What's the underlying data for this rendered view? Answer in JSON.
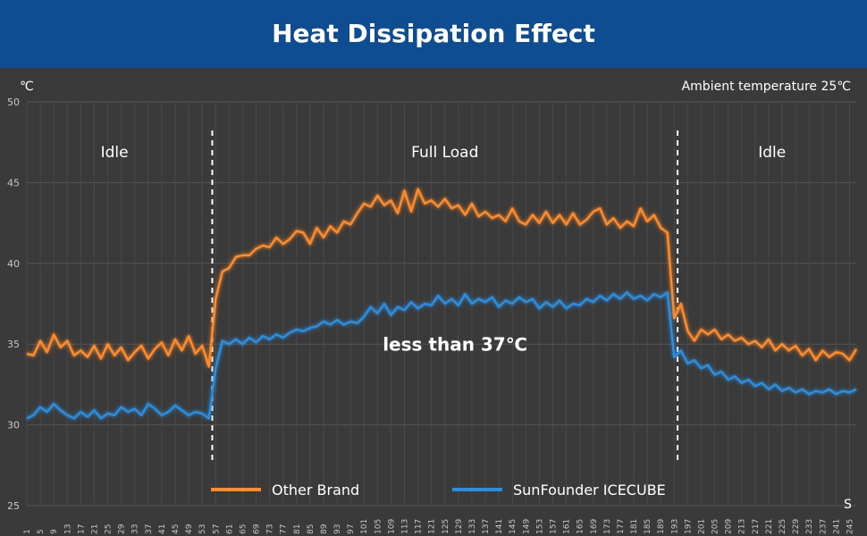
{
  "header": {
    "title": "Heat Dissipation Effect"
  },
  "colors": {
    "banner": "#0e4d92",
    "background": "#3a3a3a",
    "other_brand": "#ff8a2a",
    "sunfounder": "#2c8ee0",
    "grid": "#4a4a4a",
    "text": "#ffffff",
    "tick_text": "#c8c8c8"
  },
  "chart_data": {
    "type": "line",
    "title": "Heat Dissipation Effect",
    "y_unit_label": "℃",
    "x_unit_label": "S",
    "note": "Ambient temperature 25℃",
    "ylim": [
      25,
      50
    ],
    "yticks": [
      25,
      30,
      35,
      40,
      45,
      50
    ],
    "xlim": [
      1,
      247
    ],
    "x_tick_labels": [
      "1",
      "5",
      "9",
      "13",
      "17",
      "21",
      "25",
      "29",
      "33",
      "37",
      "41",
      "45",
      "49",
      "53",
      "57",
      "61",
      "65",
      "69",
      "73",
      "77",
      "81",
      "85",
      "89",
      "93",
      "97",
      "101",
      "105",
      "109",
      "113",
      "117",
      "121",
      "125",
      "129",
      "133",
      "137",
      "141",
      "145",
      "149",
      "153",
      "157",
      "161",
      "165",
      "169",
      "173",
      "177",
      "181",
      "185",
      "189",
      "193",
      "197",
      "201",
      "205",
      "209",
      "213",
      "217",
      "221",
      "225",
      "229",
      "233",
      "237",
      "241",
      "245"
    ],
    "grid": true,
    "phase_boundaries": [
      56,
      194
    ],
    "phase_labels": [
      {
        "text": "Idle",
        "x_center": 27
      },
      {
        "text": "Full Load",
        "x_center": 125
      },
      {
        "text": "Idle",
        "x_center": 222
      }
    ],
    "annotation": {
      "text": "less than 37℃",
      "x": 128,
      "y": 34.6
    },
    "legend_position": "bottom-center",
    "series": [
      {
        "name": "Other Brand",
        "color": "#ff8a2a",
        "points": [
          [
            1,
            34.4
          ],
          [
            3,
            34.3
          ],
          [
            5,
            35.2
          ],
          [
            7,
            34.5
          ],
          [
            9,
            35.6
          ],
          [
            11,
            34.8
          ],
          [
            13,
            35.2
          ],
          [
            15,
            34.3
          ],
          [
            17,
            34.6
          ],
          [
            19,
            34.2
          ],
          [
            21,
            34.9
          ],
          [
            23,
            34.1
          ],
          [
            25,
            35.0
          ],
          [
            27,
            34.3
          ],
          [
            29,
            34.8
          ],
          [
            31,
            34.0
          ],
          [
            33,
            34.5
          ],
          [
            35,
            34.9
          ],
          [
            37,
            34.1
          ],
          [
            39,
            34.7
          ],
          [
            41,
            35.1
          ],
          [
            43,
            34.3
          ],
          [
            45,
            35.3
          ],
          [
            47,
            34.6
          ],
          [
            49,
            35.5
          ],
          [
            51,
            34.4
          ],
          [
            53,
            34.9
          ],
          [
            55,
            33.6
          ],
          [
            57,
            37.8
          ],
          [
            59,
            39.5
          ],
          [
            61,
            39.7
          ],
          [
            63,
            40.4
          ],
          [
            65,
            40.5
          ],
          [
            67,
            40.5
          ],
          [
            69,
            40.9
          ],
          [
            71,
            41.1
          ],
          [
            73,
            41.0
          ],
          [
            75,
            41.6
          ],
          [
            77,
            41.2
          ],
          [
            79,
            41.5
          ],
          [
            81,
            42.0
          ],
          [
            83,
            41.9
          ],
          [
            85,
            41.2
          ],
          [
            87,
            42.2
          ],
          [
            89,
            41.6
          ],
          [
            91,
            42.3
          ],
          [
            93,
            41.9
          ],
          [
            95,
            42.6
          ],
          [
            97,
            42.4
          ],
          [
            99,
            43.1
          ],
          [
            101,
            43.7
          ],
          [
            103,
            43.5
          ],
          [
            105,
            44.2
          ],
          [
            107,
            43.6
          ],
          [
            109,
            43.9
          ],
          [
            111,
            43.1
          ],
          [
            113,
            44.5
          ],
          [
            115,
            43.2
          ],
          [
            117,
            44.6
          ],
          [
            119,
            43.7
          ],
          [
            121,
            43.9
          ],
          [
            123,
            43.5
          ],
          [
            125,
            44.0
          ],
          [
            127,
            43.4
          ],
          [
            129,
            43.6
          ],
          [
            131,
            43.0
          ],
          [
            133,
            43.7
          ],
          [
            135,
            42.9
          ],
          [
            137,
            43.2
          ],
          [
            139,
            42.8
          ],
          [
            141,
            43.0
          ],
          [
            143,
            42.6
          ],
          [
            145,
            43.4
          ],
          [
            147,
            42.6
          ],
          [
            149,
            42.4
          ],
          [
            151,
            43.0
          ],
          [
            153,
            42.5
          ],
          [
            155,
            43.2
          ],
          [
            157,
            42.5
          ],
          [
            159,
            43.0
          ],
          [
            161,
            42.4
          ],
          [
            163,
            43.1
          ],
          [
            165,
            42.4
          ],
          [
            167,
            42.7
          ],
          [
            169,
            43.2
          ],
          [
            171,
            43.4
          ],
          [
            173,
            42.4
          ],
          [
            175,
            42.8
          ],
          [
            177,
            42.2
          ],
          [
            179,
            42.6
          ],
          [
            181,
            42.3
          ],
          [
            183,
            43.4
          ],
          [
            185,
            42.6
          ],
          [
            187,
            43.0
          ],
          [
            189,
            42.2
          ],
          [
            191,
            41.9
          ],
          [
            193,
            36.6
          ],
          [
            195,
            37.5
          ],
          [
            197,
            35.8
          ],
          [
            199,
            35.2
          ],
          [
            201,
            35.9
          ],
          [
            203,
            35.6
          ],
          [
            205,
            35.9
          ],
          [
            207,
            35.3
          ],
          [
            209,
            35.6
          ],
          [
            211,
            35.2
          ],
          [
            213,
            35.4
          ],
          [
            215,
            35.0
          ],
          [
            217,
            35.2
          ],
          [
            219,
            34.8
          ],
          [
            221,
            35.3
          ],
          [
            223,
            34.6
          ],
          [
            225,
            35.0
          ],
          [
            227,
            34.6
          ],
          [
            229,
            34.9
          ],
          [
            231,
            34.3
          ],
          [
            233,
            34.7
          ],
          [
            235,
            34.0
          ],
          [
            237,
            34.6
          ],
          [
            239,
            34.2
          ],
          [
            241,
            34.5
          ],
          [
            243,
            34.4
          ],
          [
            245,
            34.0
          ],
          [
            247,
            34.7
          ]
        ]
      },
      {
        "name": "SunFounder ICECUBE",
        "color": "#2c8ee0",
        "points": [
          [
            1,
            30.4
          ],
          [
            3,
            30.6
          ],
          [
            5,
            31.1
          ],
          [
            7,
            30.8
          ],
          [
            9,
            31.3
          ],
          [
            11,
            30.9
          ],
          [
            13,
            30.6
          ],
          [
            15,
            30.4
          ],
          [
            17,
            30.8
          ],
          [
            19,
            30.5
          ],
          [
            21,
            30.9
          ],
          [
            23,
            30.4
          ],
          [
            25,
            30.7
          ],
          [
            27,
            30.6
          ],
          [
            29,
            31.1
          ],
          [
            31,
            30.8
          ],
          [
            33,
            31.0
          ],
          [
            35,
            30.6
          ],
          [
            37,
            31.3
          ],
          [
            39,
            31.0
          ],
          [
            41,
            30.6
          ],
          [
            43,
            30.8
          ],
          [
            45,
            31.2
          ],
          [
            47,
            30.9
          ],
          [
            49,
            30.6
          ],
          [
            51,
            30.8
          ],
          [
            53,
            30.7
          ],
          [
            55,
            30.4
          ],
          [
            57,
            33.5
          ],
          [
            59,
            35.2
          ],
          [
            61,
            35.0
          ],
          [
            63,
            35.3
          ],
          [
            65,
            35.0
          ],
          [
            67,
            35.4
          ],
          [
            69,
            35.1
          ],
          [
            71,
            35.5
          ],
          [
            73,
            35.3
          ],
          [
            75,
            35.6
          ],
          [
            77,
            35.4
          ],
          [
            79,
            35.7
          ],
          [
            81,
            35.9
          ],
          [
            83,
            35.8
          ],
          [
            85,
            36.0
          ],
          [
            87,
            36.1
          ],
          [
            89,
            36.4
          ],
          [
            91,
            36.2
          ],
          [
            93,
            36.5
          ],
          [
            95,
            36.2
          ],
          [
            97,
            36.4
          ],
          [
            99,
            36.3
          ],
          [
            101,
            36.7
          ],
          [
            103,
            37.3
          ],
          [
            105,
            36.9
          ],
          [
            107,
            37.5
          ],
          [
            109,
            36.8
          ],
          [
            111,
            37.3
          ],
          [
            113,
            37.1
          ],
          [
            115,
            37.6
          ],
          [
            117,
            37.2
          ],
          [
            119,
            37.5
          ],
          [
            121,
            37.4
          ],
          [
            123,
            38.0
          ],
          [
            125,
            37.5
          ],
          [
            127,
            37.8
          ],
          [
            129,
            37.4
          ],
          [
            131,
            38.1
          ],
          [
            133,
            37.5
          ],
          [
            135,
            37.8
          ],
          [
            137,
            37.6
          ],
          [
            139,
            37.9
          ],
          [
            141,
            37.3
          ],
          [
            143,
            37.7
          ],
          [
            145,
            37.5
          ],
          [
            147,
            37.9
          ],
          [
            149,
            37.6
          ],
          [
            151,
            37.8
          ],
          [
            153,
            37.2
          ],
          [
            155,
            37.6
          ],
          [
            157,
            37.3
          ],
          [
            159,
            37.7
          ],
          [
            161,
            37.2
          ],
          [
            163,
            37.5
          ],
          [
            165,
            37.4
          ],
          [
            167,
            37.8
          ],
          [
            169,
            37.6
          ],
          [
            171,
            38.0
          ],
          [
            173,
            37.7
          ],
          [
            175,
            38.1
          ],
          [
            177,
            37.8
          ],
          [
            179,
            38.2
          ],
          [
            181,
            37.8
          ],
          [
            183,
            38.0
          ],
          [
            185,
            37.7
          ],
          [
            187,
            38.1
          ],
          [
            189,
            37.9
          ],
          [
            191,
            38.2
          ],
          [
            193,
            34.2
          ],
          [
            195,
            34.6
          ],
          [
            197,
            33.8
          ],
          [
            199,
            34.0
          ],
          [
            201,
            33.5
          ],
          [
            203,
            33.7
          ],
          [
            205,
            33.1
          ],
          [
            207,
            33.3
          ],
          [
            209,
            32.8
          ],
          [
            211,
            33.0
          ],
          [
            213,
            32.6
          ],
          [
            215,
            32.8
          ],
          [
            217,
            32.4
          ],
          [
            219,
            32.6
          ],
          [
            221,
            32.2
          ],
          [
            223,
            32.5
          ],
          [
            225,
            32.1
          ],
          [
            227,
            32.3
          ],
          [
            229,
            32.0
          ],
          [
            231,
            32.2
          ],
          [
            233,
            31.9
          ],
          [
            235,
            32.1
          ],
          [
            237,
            32.0
          ],
          [
            239,
            32.2
          ],
          [
            241,
            31.9
          ],
          [
            243,
            32.1
          ],
          [
            245,
            32.0
          ],
          [
            247,
            32.2
          ]
        ]
      }
    ]
  }
}
